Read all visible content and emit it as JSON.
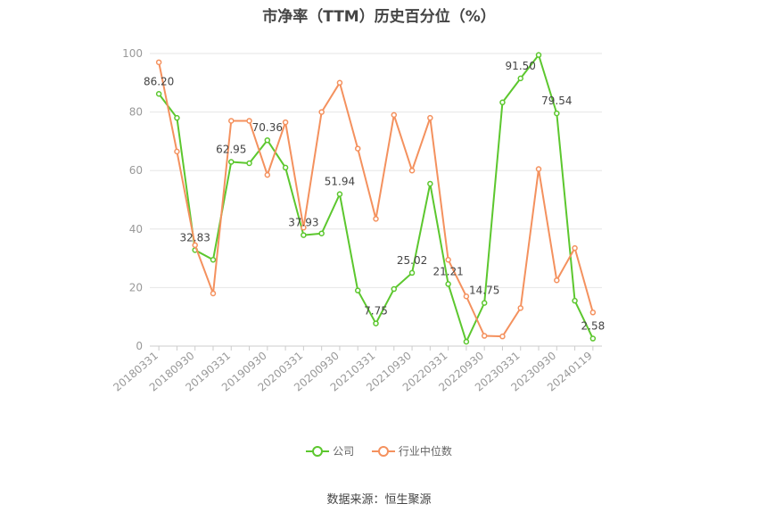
{
  "chart_data": {
    "type": "line",
    "title": "市净率（TTM）历史百分位（%）",
    "source": "数据来源：恒生聚源",
    "ylim": [
      0,
      100
    ],
    "y_ticks": [
      0,
      20,
      40,
      60,
      80,
      100
    ],
    "x_tick_labels": [
      "20180331",
      "20180930",
      "20190331",
      "20190930",
      "20200331",
      "20200930",
      "20210331",
      "20210930",
      "20220331",
      "20220930",
      "20230331",
      "20230930",
      "20240119"
    ],
    "categories": [
      "20180331",
      "20180630",
      "20180930",
      "20181231",
      "20190331",
      "20190630",
      "20190930",
      "20191231",
      "20200331",
      "20200630",
      "20200930",
      "20201231",
      "20210331",
      "20210630",
      "20210930",
      "20211231",
      "20220331",
      "20220630",
      "20220930",
      "20221231",
      "20230331",
      "20230630",
      "20230930",
      "20231231",
      "20240119"
    ],
    "grid": true,
    "legend_position": "bottom",
    "series": [
      {
        "name": "公司",
        "color": "#5cc72e",
        "values": [
          86.2,
          78.0,
          32.83,
          29.5,
          62.95,
          62.5,
          70.36,
          61.0,
          37.93,
          38.5,
          51.94,
          19.0,
          7.75,
          19.5,
          25.02,
          55.5,
          21.21,
          1.5,
          14.75,
          83.3,
          91.5,
          99.5,
          79.54,
          15.5,
          2.58
        ],
        "labels": [
          "86.20",
          null,
          "32.83",
          null,
          "62.95",
          null,
          "70.36",
          null,
          "37.93",
          null,
          "51.94",
          null,
          "7.75",
          null,
          "25.02",
          null,
          "21.21",
          null,
          "14.75",
          null,
          "91.50",
          null,
          "79.54",
          null,
          "2.58"
        ]
      },
      {
        "name": "行业中位数",
        "color": "#f4915e",
        "values": [
          97.0,
          66.5,
          34.5,
          18.0,
          77.0,
          77.0,
          58.5,
          76.5,
          40.5,
          80.0,
          90.0,
          67.5,
          43.5,
          79.0,
          60.0,
          78.0,
          29.5,
          17.0,
          3.5,
          3.3,
          13.0,
          60.5,
          22.5,
          33.5,
          11.5
        ]
      }
    ]
  }
}
